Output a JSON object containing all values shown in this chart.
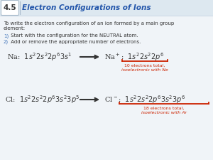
{
  "bg_color": "#f0f4f8",
  "title_num": "4.5",
  "title_text": "Electron Configurations of Ions",
  "title_color": "#2255aa",
  "body_text_color": "#333333",
  "step_num_color": "#4477bb",
  "red_color": "#cc2200",
  "intro_line1": "To write the electron configuration of an ion formed by a main group",
  "intro_line2": "element:",
  "step1_num": "1)",
  "step1_text": " Start with the configuration for the NEUTRAL atom.",
  "step2_num": "2)",
  "step2_text": " Add or remove the appropriate number of electrons.",
  "na_note1": "10 electrons total,",
  "na_note2": "isoelectronic with Ne",
  "cl_note1": "18 electrons total,",
  "cl_note2": "isoelectronic with Ar"
}
